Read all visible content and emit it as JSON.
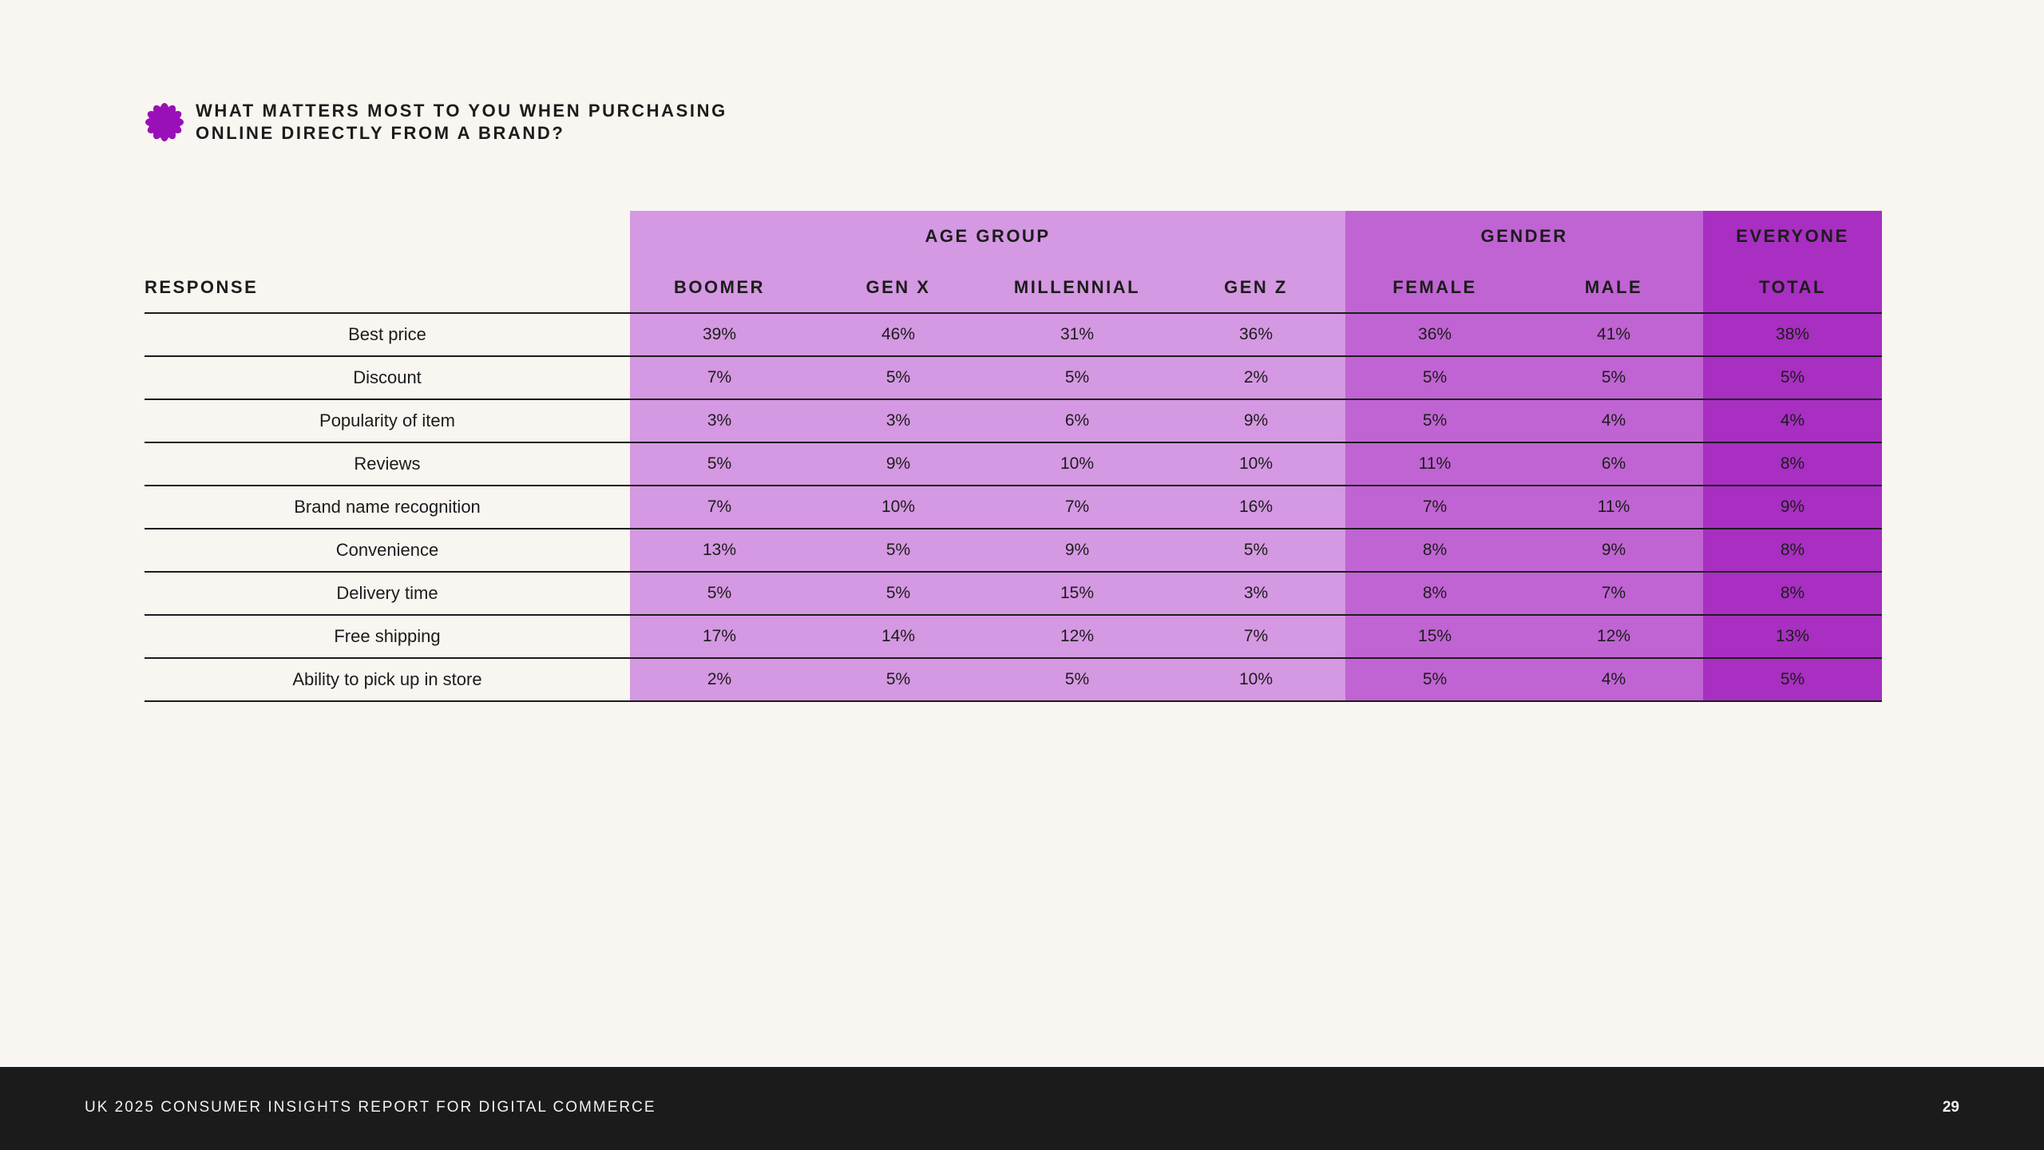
{
  "heading": {
    "line1": "WHAT MATTERS MOST TO YOU WHEN PURCHASING",
    "line2": "ONLINE DIRECTLY FROM A BRAND?",
    "icon": "flower-icon",
    "icon_color": "#9a10b8"
  },
  "table": {
    "groups": {
      "age": "AGE GROUP",
      "gender": "GENDER",
      "everyone": "EVERYONE"
    },
    "columns": {
      "response": "RESPONSE",
      "boomer": "BOOMER",
      "genx": "GEN X",
      "millennial": "MILLENNIAL",
      "genz": "GEN Z",
      "female": "FEMALE",
      "male": "MALE",
      "total": "TOTAL"
    },
    "rows": [
      {
        "response": "Best price",
        "boomer": "39%",
        "genx": "46%",
        "millennial": "31%",
        "genz": "36%",
        "female": "36%",
        "male": "41%",
        "total": "38%"
      },
      {
        "response": "Discount",
        "boomer": "7%",
        "genx": "5%",
        "millennial": "5%",
        "genz": "2%",
        "female": "5%",
        "male": "5%",
        "total": "5%"
      },
      {
        "response": "Popularity of item",
        "boomer": "3%",
        "genx": "3%",
        "millennial": "6%",
        "genz": "9%",
        "female": "5%",
        "male": "4%",
        "total": "4%"
      },
      {
        "response": "Reviews",
        "boomer": "5%",
        "genx": "9%",
        "millennial": "10%",
        "genz": "10%",
        "female": "11%",
        "male": "6%",
        "total": "8%"
      },
      {
        "response": "Brand name recognition",
        "boomer": "7%",
        "genx": "10%",
        "millennial": "7%",
        "genz": "16%",
        "female": "7%",
        "male": "11%",
        "total": "9%"
      },
      {
        "response": "Convenience",
        "boomer": "13%",
        "genx": "5%",
        "millennial": "9%",
        "genz": "5%",
        "female": "8%",
        "male": "9%",
        "total": "8%"
      },
      {
        "response": "Delivery time",
        "boomer": "5%",
        "genx": "5%",
        "millennial": "15%",
        "genz": "3%",
        "female": "8%",
        "male": "7%",
        "total": "8%"
      },
      {
        "response": "Free shipping",
        "boomer": "17%",
        "genx": "14%",
        "millennial": "12%",
        "genz": "7%",
        "female": "15%",
        "male": "12%",
        "total": "13%"
      },
      {
        "response": "Ability to pick up in store",
        "boomer": "2%",
        "genx": "5%",
        "millennial": "5%",
        "genz": "10%",
        "female": "5%",
        "male": "4%",
        "total": "5%"
      }
    ],
    "colors": {
      "age": "#d598e2",
      "gender": "#c064d3",
      "everyone": "#a82fc1"
    }
  },
  "footer": {
    "title": "UK 2025 CONSUMER INSIGHTS REPORT FOR DIGITAL COMMERCE",
    "page": "29"
  }
}
